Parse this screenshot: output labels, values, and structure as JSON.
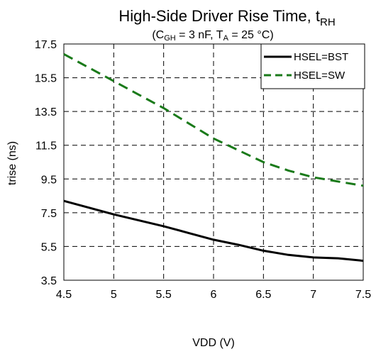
{
  "chart_data": {
    "type": "line",
    "title": "High-Side Driver Rise Time, t",
    "title_subscript": "RH",
    "subtitle_parts": [
      "(C",
      "GH",
      " = 3 nF, T",
      "A",
      " = 25 °C)"
    ],
    "xlabel": "VDD (V)",
    "ylabel": "trise (ns)",
    "xlim": [
      4.5,
      7.5
    ],
    "ylim": [
      3.5,
      17.5
    ],
    "x_ticks": [
      "4.5",
      "5",
      "5.5",
      "6",
      "6.5",
      "7",
      "7.5"
    ],
    "y_ticks": [
      "3.5",
      "5.5",
      "7.5",
      "9.5",
      "11.5",
      "13.5",
      "15.5",
      "17.5"
    ],
    "grid": true,
    "legend_position": "top-right",
    "series": [
      {
        "name": "HSEL=BST",
        "color": "#000000",
        "dash": "solid",
        "x": [
          4.5,
          4.75,
          5.0,
          5.25,
          5.5,
          5.75,
          6.0,
          6.25,
          6.5,
          6.75,
          7.0,
          7.25,
          7.5
        ],
        "y": [
          8.2,
          7.8,
          7.4,
          7.05,
          6.7,
          6.3,
          5.9,
          5.6,
          5.25,
          5.0,
          4.85,
          4.8,
          4.65
        ]
      },
      {
        "name": "HSEL=SW",
        "color": "#1a7a1a",
        "dash": "dashed",
        "x": [
          4.5,
          4.75,
          5.0,
          5.25,
          5.5,
          5.75,
          6.0,
          6.25,
          6.5,
          6.75,
          7.0,
          7.25,
          7.5
        ],
        "y": [
          16.9,
          16.1,
          15.3,
          14.5,
          13.7,
          12.8,
          11.9,
          11.2,
          10.5,
          10.0,
          9.6,
          9.35,
          9.1
        ]
      }
    ]
  }
}
